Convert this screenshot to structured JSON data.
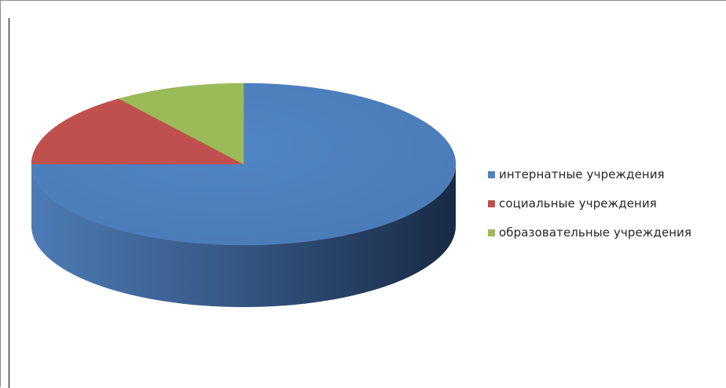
{
  "chart_data": {
    "type": "pie",
    "title": "",
    "categories": [
      "интернатные учреждения",
      "социальные учреждения",
      "образовательные учреждения"
    ],
    "values": [
      75,
      15,
      10
    ],
    "colors": [
      "#4f81bd",
      "#c0504d",
      "#9bbb59"
    ],
    "legend_position": "right",
    "three_d": true
  }
}
